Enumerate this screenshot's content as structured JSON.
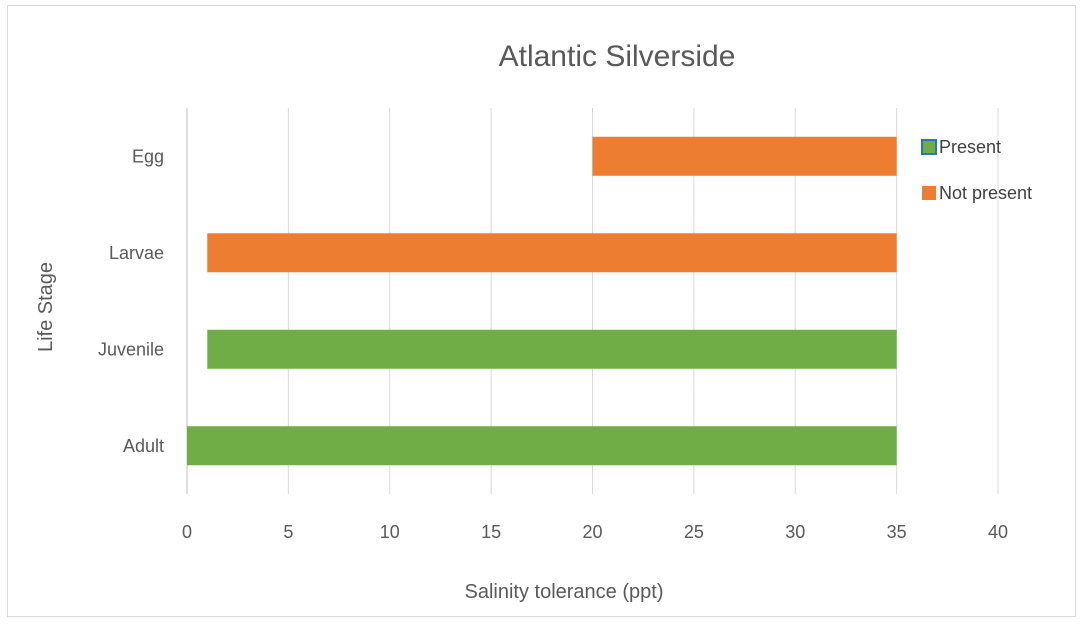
{
  "chart_data": {
    "type": "bar",
    "orientation": "horizontal",
    "subtype": "floating-range",
    "title": "Atlantic Silverside",
    "xlabel": "Salinity tolerance (ppt)",
    "ylabel": "Life Stage",
    "xlim": [
      0,
      40
    ],
    "xticks": [
      0,
      5,
      10,
      15,
      20,
      25,
      30,
      35,
      40
    ],
    "grid": "vertical",
    "legend_position": "right",
    "categories": [
      "Adult",
      "Juvenile",
      "Larvae",
      "Egg"
    ],
    "bars": [
      {
        "category": "Adult",
        "start": 0,
        "end": 35,
        "series": "Present"
      },
      {
        "category": "Juvenile",
        "start": 1,
        "end": 35,
        "series": "Present"
      },
      {
        "category": "Larvae",
        "start": 1,
        "end": 35,
        "series": "Not present"
      },
      {
        "category": "Egg",
        "start": 20,
        "end": 35,
        "series": "Not present"
      }
    ],
    "series": [
      {
        "name": "Present",
        "color": "#70ad47"
      },
      {
        "name": "Not present",
        "color": "#ed7d31"
      }
    ]
  }
}
